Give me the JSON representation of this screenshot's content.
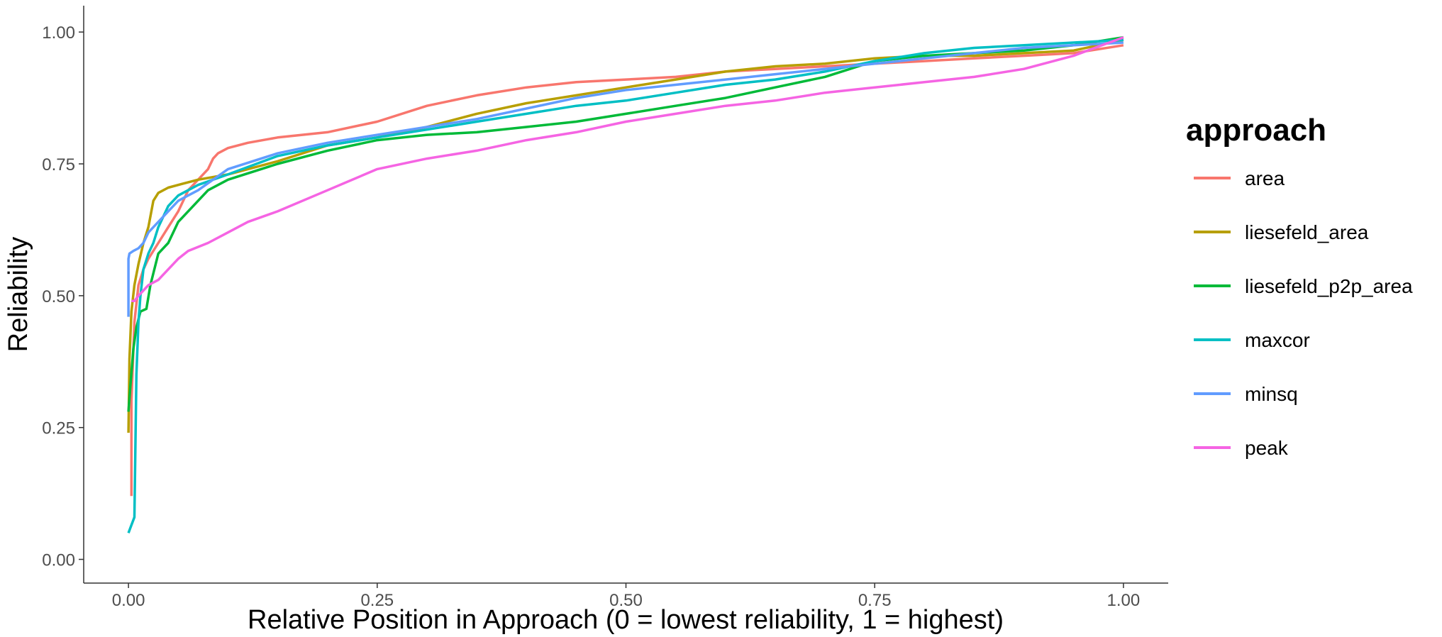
{
  "chart_data": {
    "type": "line",
    "title": "",
    "xlabel": "Relative Position in Approach (0 = lowest reliability, 1 = highest)",
    "ylabel": "Reliability",
    "xlim": [
      -0.045,
      1.045
    ],
    "ylim": [
      -0.045,
      1.05
    ],
    "x_ticks": [
      0,
      0.25,
      0.5,
      0.75,
      1
    ],
    "x_tick_labels": [
      "0.00",
      "0.25",
      "0.50",
      "0.75",
      "1.00"
    ],
    "y_ticks": [
      0,
      0.25,
      0.5,
      0.75,
      1
    ],
    "y_tick_labels": [
      "0.00",
      "0.25",
      "0.50",
      "0.75",
      "1.00"
    ],
    "grid": false,
    "legend": {
      "title": "approach",
      "position": "right"
    },
    "series": [
      {
        "name": "area",
        "color": "#F8766D",
        "x": [
          0.003,
          0.003,
          0.006,
          0.01,
          0.015,
          0.02,
          0.03,
          0.04,
          0.05,
          0.06,
          0.07,
          0.08,
          0.085,
          0.09,
          0.1,
          0.12,
          0.15,
          0.2,
          0.25,
          0.3,
          0.35,
          0.4,
          0.45,
          0.5,
          0.55,
          0.6,
          0.65,
          0.7,
          0.75,
          0.8,
          0.85,
          0.9,
          0.95,
          1.0
        ],
        "y": [
          0.12,
          0.3,
          0.45,
          0.52,
          0.55,
          0.57,
          0.6,
          0.63,
          0.66,
          0.7,
          0.72,
          0.74,
          0.76,
          0.77,
          0.78,
          0.79,
          0.8,
          0.81,
          0.83,
          0.86,
          0.88,
          0.895,
          0.905,
          0.91,
          0.915,
          0.925,
          0.93,
          0.935,
          0.94,
          0.945,
          0.95,
          0.955,
          0.96,
          0.975
        ]
      },
      {
        "name": "liesefeld_area",
        "color": "#B79F00",
        "x": [
          0.0,
          0.001,
          0.003,
          0.006,
          0.01,
          0.015,
          0.02,
          0.025,
          0.03,
          0.04,
          0.05,
          0.07,
          0.1,
          0.15,
          0.2,
          0.25,
          0.3,
          0.35,
          0.4,
          0.45,
          0.5,
          0.55,
          0.6,
          0.65,
          0.7,
          0.75,
          0.8,
          0.85,
          0.9,
          0.95,
          1.0
        ],
        "y": [
          0.24,
          0.38,
          0.47,
          0.52,
          0.56,
          0.6,
          0.63,
          0.68,
          0.695,
          0.705,
          0.71,
          0.72,
          0.73,
          0.755,
          0.785,
          0.8,
          0.82,
          0.845,
          0.865,
          0.88,
          0.895,
          0.91,
          0.925,
          0.935,
          0.94,
          0.95,
          0.955,
          0.955,
          0.96,
          0.965,
          0.985
        ]
      },
      {
        "name": "liesefeld_p2p_area",
        "color": "#00BA38",
        "x": [
          0.0,
          0.002,
          0.005,
          0.008,
          0.012,
          0.018,
          0.022,
          0.026,
          0.03,
          0.04,
          0.05,
          0.06,
          0.07,
          0.08,
          0.1,
          0.15,
          0.2,
          0.25,
          0.3,
          0.35,
          0.4,
          0.45,
          0.5,
          0.55,
          0.6,
          0.65,
          0.7,
          0.75,
          0.8,
          0.85,
          0.9,
          0.95,
          1.0
        ],
        "y": [
          0.28,
          0.33,
          0.4,
          0.44,
          0.47,
          0.475,
          0.52,
          0.55,
          0.58,
          0.6,
          0.64,
          0.66,
          0.68,
          0.7,
          0.72,
          0.75,
          0.775,
          0.795,
          0.805,
          0.81,
          0.82,
          0.83,
          0.845,
          0.86,
          0.875,
          0.895,
          0.915,
          0.945,
          0.955,
          0.96,
          0.965,
          0.975,
          0.99
        ]
      },
      {
        "name": "maxcor",
        "color": "#00BFC4",
        "x": [
          0.0,
          0.002,
          0.004,
          0.006,
          0.008,
          0.01,
          0.012,
          0.015,
          0.02,
          0.025,
          0.03,
          0.04,
          0.05,
          0.07,
          0.1,
          0.15,
          0.2,
          0.25,
          0.3,
          0.35,
          0.4,
          0.45,
          0.5,
          0.55,
          0.6,
          0.65,
          0.7,
          0.75,
          0.8,
          0.85,
          0.9,
          0.95,
          1.0
        ],
        "y": [
          0.05,
          0.06,
          0.07,
          0.08,
          0.35,
          0.45,
          0.5,
          0.55,
          0.58,
          0.6,
          0.63,
          0.67,
          0.69,
          0.71,
          0.73,
          0.765,
          0.785,
          0.8,
          0.815,
          0.83,
          0.845,
          0.86,
          0.87,
          0.885,
          0.9,
          0.91,
          0.925,
          0.945,
          0.96,
          0.97,
          0.975,
          0.98,
          0.985
        ]
      },
      {
        "name": "minsq",
        "color": "#619CFF",
        "x": [
          0.0,
          0.0,
          0.001,
          0.005,
          0.01,
          0.015,
          0.02,
          0.03,
          0.04,
          0.05,
          0.06,
          0.07,
          0.1,
          0.15,
          0.2,
          0.25,
          0.3,
          0.35,
          0.4,
          0.45,
          0.5,
          0.55,
          0.6,
          0.65,
          0.7,
          0.75,
          0.8,
          0.85,
          0.9,
          0.95,
          1.0
        ],
        "y": [
          0.46,
          0.57,
          0.58,
          0.585,
          0.59,
          0.6,
          0.62,
          0.64,
          0.66,
          0.68,
          0.69,
          0.7,
          0.74,
          0.77,
          0.79,
          0.805,
          0.82,
          0.835,
          0.855,
          0.875,
          0.89,
          0.9,
          0.91,
          0.92,
          0.93,
          0.94,
          0.95,
          0.96,
          0.97,
          0.975,
          0.98
        ]
      },
      {
        "name": "peak",
        "color": "#F564E3",
        "x": [
          0.003,
          0.006,
          0.01,
          0.02,
          0.03,
          0.04,
          0.05,
          0.06,
          0.08,
          0.1,
          0.12,
          0.15,
          0.2,
          0.25,
          0.3,
          0.35,
          0.4,
          0.45,
          0.5,
          0.55,
          0.6,
          0.65,
          0.7,
          0.75,
          0.8,
          0.85,
          0.9,
          0.95,
          1.0
        ],
        "y": [
          0.49,
          0.49,
          0.5,
          0.52,
          0.53,
          0.55,
          0.57,
          0.585,
          0.6,
          0.62,
          0.64,
          0.66,
          0.7,
          0.74,
          0.76,
          0.775,
          0.795,
          0.81,
          0.83,
          0.845,
          0.86,
          0.87,
          0.885,
          0.895,
          0.905,
          0.915,
          0.93,
          0.955,
          0.99
        ]
      }
    ]
  }
}
